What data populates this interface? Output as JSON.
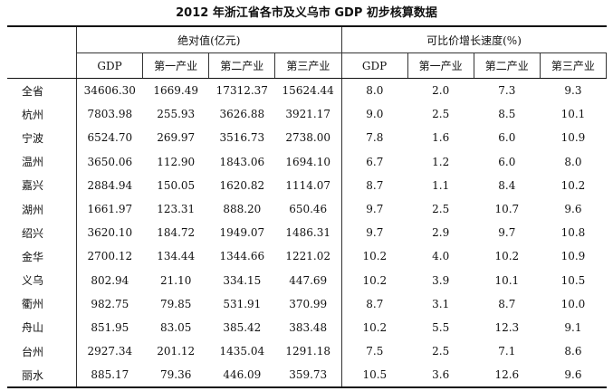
{
  "title": "2012 年浙江省各市及义乌市 GDP 初步核算数据",
  "table": {
    "groups": [
      "绝对值(亿元)",
      "可比价增长速度(%)"
    ],
    "columns": [
      "GDP",
      "第一产业",
      "第二产业",
      "第三产业",
      "GDP",
      "第一产业",
      "第二产业",
      "第三产业"
    ],
    "rows": [
      [
        "全省",
        "34606.30",
        "1669.49",
        "17312.37",
        "15624.44",
        "8.0",
        "2.0",
        "7.3",
        "9.3"
      ],
      [
        "杭州",
        "7803.98",
        "255.93",
        "3626.88",
        "3921.17",
        "9.0",
        "2.5",
        "8.5",
        "10.1"
      ],
      [
        "宁波",
        "6524.70",
        "269.97",
        "3516.73",
        "2738.00",
        "7.8",
        "1.6",
        "6.0",
        "10.9"
      ],
      [
        "温州",
        "3650.06",
        "112.90",
        "1843.06",
        "1694.10",
        "6.7",
        "1.2",
        "6.0",
        "8.0"
      ],
      [
        "嘉兴",
        "2884.94",
        "150.05",
        "1620.82",
        "1114.07",
        "8.7",
        "1.1",
        "8.4",
        "10.2"
      ],
      [
        "湖州",
        "1661.97",
        "123.31",
        "888.20",
        "650.46",
        "9.7",
        "2.5",
        "10.7",
        "9.6"
      ],
      [
        "绍兴",
        "3620.10",
        "184.72",
        "1949.07",
        "1486.31",
        "9.7",
        "2.9",
        "9.7",
        "10.8"
      ],
      [
        "金华",
        "2700.12",
        "134.44",
        "1344.66",
        "1221.02",
        "10.2",
        "4.0",
        "10.2",
        "10.9"
      ],
      [
        "义乌",
        "802.94",
        "21.10",
        "334.15",
        "447.69",
        "10.2",
        "3.9",
        "10.1",
        "10.5"
      ],
      [
        "衢州",
        "982.75",
        "79.85",
        "531.91",
        "370.99",
        "8.7",
        "3.1",
        "8.7",
        "10.0"
      ],
      [
        "舟山",
        "851.95",
        "83.05",
        "385.42",
        "383.48",
        "10.2",
        "5.5",
        "12.3",
        "9.1"
      ],
      [
        "台州",
        "2927.34",
        "201.12",
        "1435.04",
        "1291.18",
        "7.5",
        "2.5",
        "7.1",
        "8.6"
      ],
      [
        "丽水",
        "885.17",
        "79.36",
        "446.09",
        "359.73",
        "10.5",
        "3.6",
        "12.6",
        "9.6"
      ]
    ]
  }
}
